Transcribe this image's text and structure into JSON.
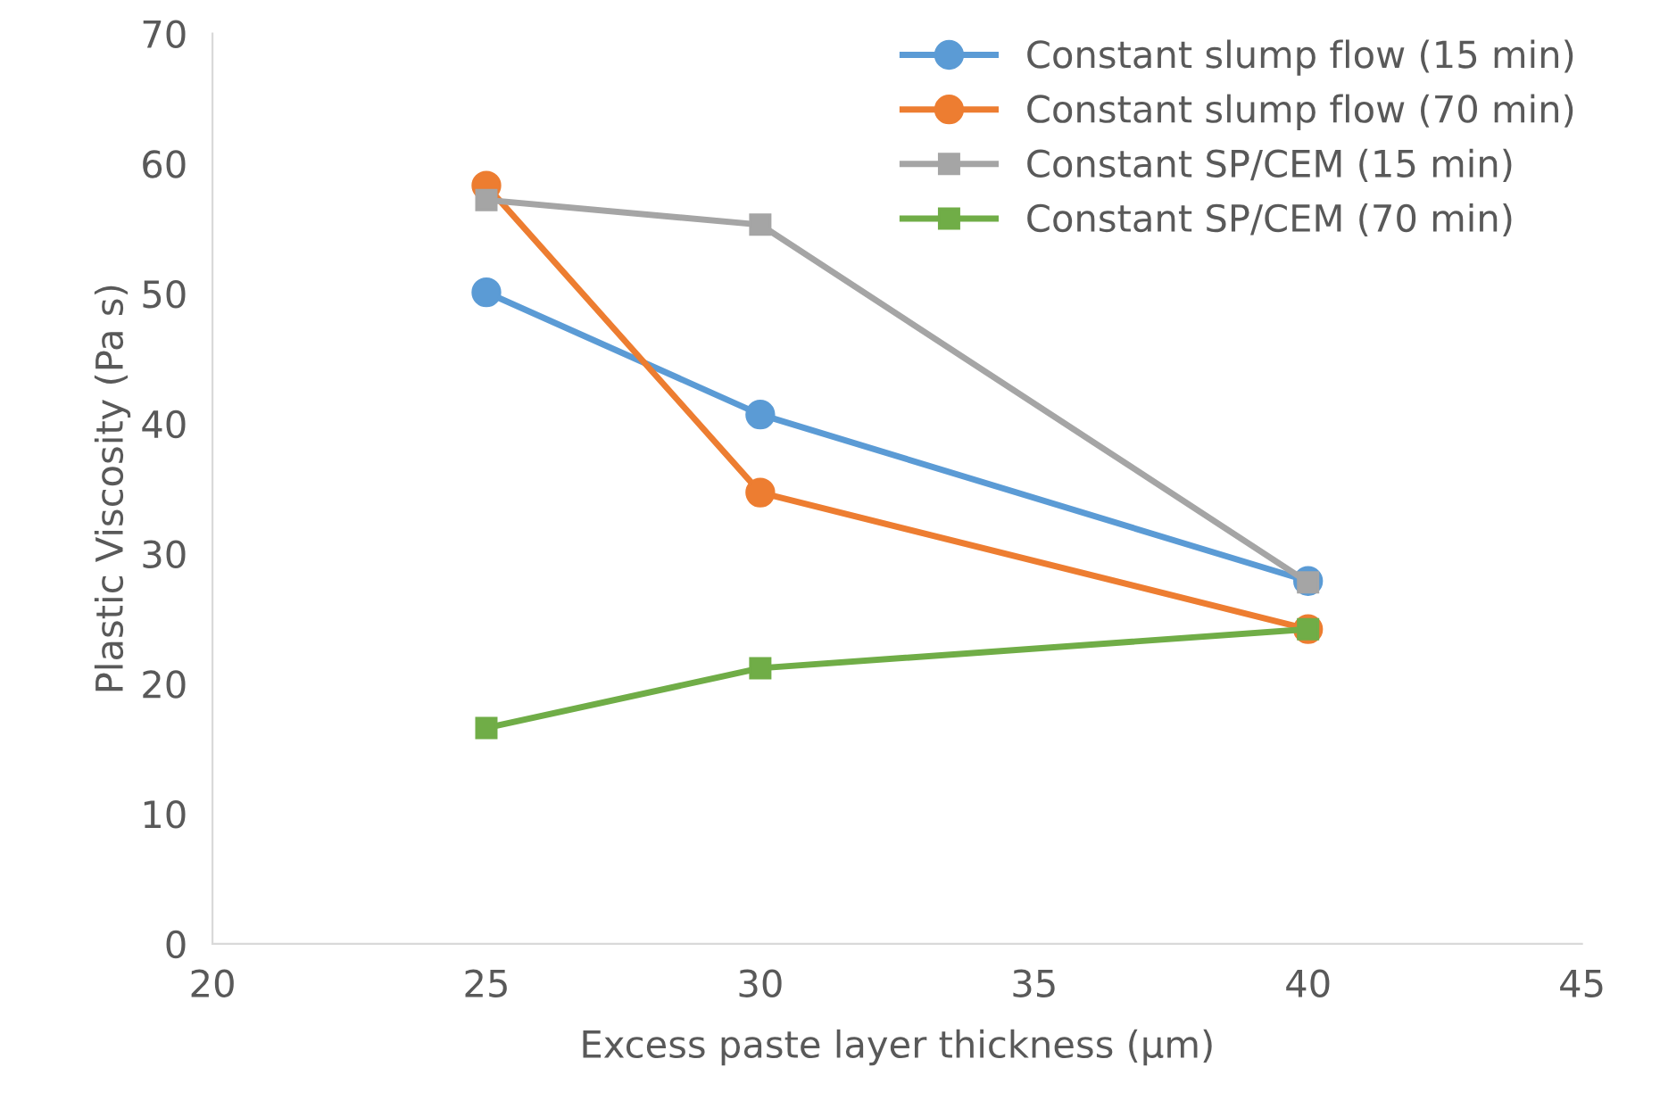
{
  "chart_data": {
    "type": "line",
    "xlabel": "Excess paste layer thickness (µm)",
    "ylabel": "Plastic Viscosity (Pa s)",
    "x": [
      25,
      30,
      40
    ],
    "series": [
      {
        "name": "Constant slump flow (15 min)",
        "color": "#5b9bd5",
        "values": [
          50.1,
          40.7,
          27.9
        ],
        "marker": "circle"
      },
      {
        "name": "Constant slump flow (70 min)",
        "color": "#ed7d31",
        "values": [
          58.3,
          34.7,
          24.2
        ],
        "marker": "circle"
      },
      {
        "name": "Constant SP/CEM (15 min)",
        "color": "#a5a5a5",
        "values": [
          57.2,
          55.3,
          27.8
        ],
        "marker": "square"
      },
      {
        "name": "Constant SP/CEM (70 min)",
        "color": "#70ad47",
        "values": [
          16.6,
          21.2,
          24.2
        ],
        "marker": "square"
      }
    ],
    "xlim": [
      20,
      45
    ],
    "xticks": [
      20,
      25,
      30,
      35,
      40,
      45
    ],
    "ylim": [
      0,
      70
    ],
    "yticks": [
      0,
      10,
      20,
      30,
      40,
      50,
      60,
      70
    ],
    "grid": false,
    "legend": "top right",
    "line_style": "solid"
  }
}
